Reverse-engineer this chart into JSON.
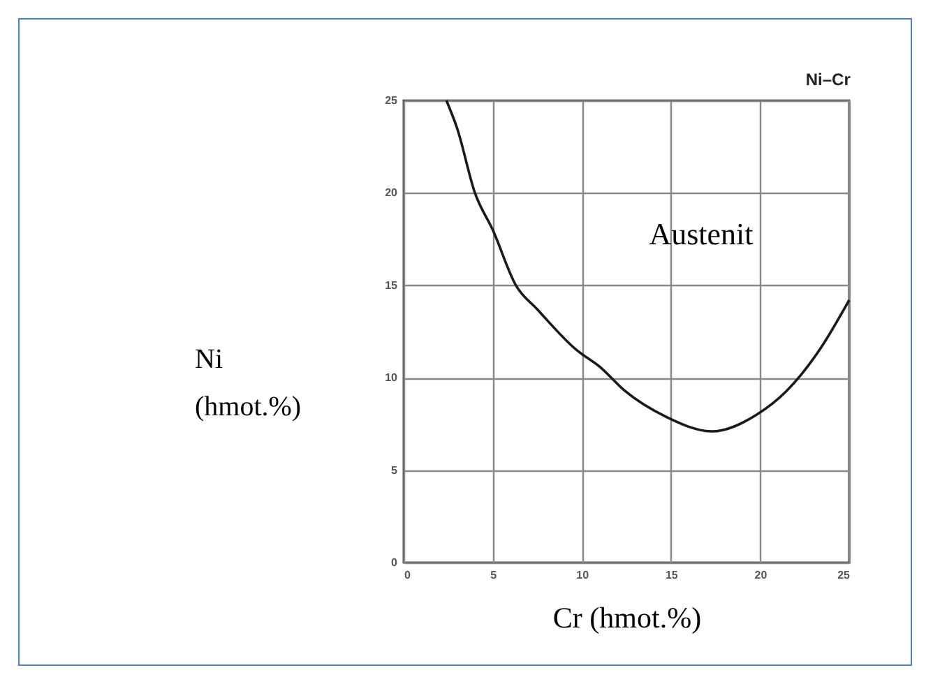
{
  "chart_data": {
    "type": "line",
    "title": "Ni–Cr",
    "xlabel": "Cr (hmot.%)",
    "ylabel": "Ni (hmot.%)",
    "annotations": [
      "Austenit"
    ],
    "x": [
      2.4,
      3,
      4,
      5,
      6.3,
      7.5,
      9.7,
      11,
      12.4,
      14.7,
      17.3,
      19.8,
      21.5,
      23.4,
      25
    ],
    "series": [
      {
        "color": "#1a1a1a",
        "values": [
          25,
          23.5,
          20,
          18,
          15,
          13.7,
          11.5,
          10.6,
          9.3,
          7.9,
          7.1,
          8,
          9.3,
          11.6,
          14.2
        ]
      }
    ],
    "xlim": [
      0,
      25
    ],
    "ylim": [
      0,
      25
    ],
    "xticks": [
      0,
      5,
      10,
      15,
      20,
      25
    ],
    "yticks": [
      0,
      5,
      10,
      15,
      20,
      25
    ],
    "grid": true,
    "line_style": "solid",
    "marker": "none"
  }
}
